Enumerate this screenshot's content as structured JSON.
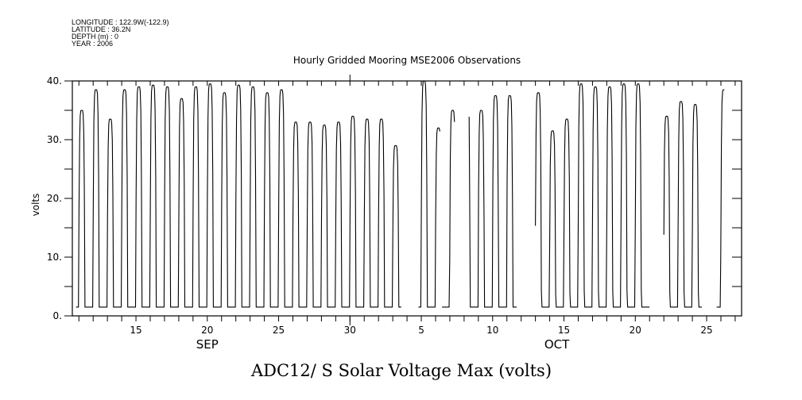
{
  "header": {
    "longitude": "LONGITUDE : 122.9W(-122.9)",
    "latitude": "LATITUDE : 36.2N",
    "depth": "DEPTH (m) : 0",
    "year": "YEAR : 2006"
  },
  "chart_data": {
    "type": "line",
    "title": "Hourly Gridded Mooring MSE2006 Observations",
    "xlabel": "ADC12/ S Solar Voltage Max (volts)",
    "ylabel": "volts",
    "x_unit": "day of Sep 2006 (Oct N = 30 + N)",
    "xlim": [
      10.54,
      57.45
    ],
    "ylim": [
      0,
      40
    ],
    "yticks": [
      0,
      5,
      10,
      15,
      20,
      25,
      30,
      35,
      40
    ],
    "ytick_labels": [
      {
        "value": 0,
        "label": "0."
      },
      {
        "value": 10,
        "label": "10."
      },
      {
        "value": 20,
        "label": "20."
      },
      {
        "value": 30,
        "label": "30."
      },
      {
        "value": 40,
        "label": "40."
      }
    ],
    "xtick_labels": [
      {
        "value": 15,
        "label": "15"
      },
      {
        "value": 20,
        "label": "20"
      },
      {
        "value": 25,
        "label": "25"
      },
      {
        "value": 30,
        "label": "30"
      },
      {
        "value": 35,
        "label": "5"
      },
      {
        "value": 40,
        "label": "10"
      },
      {
        "value": 45,
        "label": "15"
      },
      {
        "value": 50,
        "label": "20"
      },
      {
        "value": 55,
        "label": "25"
      }
    ],
    "month_labels": [
      {
        "value": 20,
        "label": "SEP"
      },
      {
        "value": 44.5,
        "label": "OCT"
      }
    ],
    "grid": false,
    "night_value": 1.5,
    "segments": [
      [
        10.8,
        33.6
      ],
      [
        34.8,
        36.3
      ],
      [
        36.45,
        37.35
      ],
      [
        38.35,
        41.7
      ],
      [
        43.0,
        51.0
      ],
      [
        52.0,
        54.7
      ],
      [
        55.7,
        56.25
      ]
    ],
    "daily_peaks": [
      {
        "day": 11,
        "value": 35
      },
      {
        "day": 12,
        "value": 38.5
      },
      {
        "day": 13,
        "value": 33.5
      },
      {
        "day": 14,
        "value": 38.5
      },
      {
        "day": 15,
        "value": 39
      },
      {
        "day": 16,
        "value": 39.3
      },
      {
        "day": 17,
        "value": 39
      },
      {
        "day": 18,
        "value": 37
      },
      {
        "day": 19,
        "value": 39
      },
      {
        "day": 20,
        "value": 39.5
      },
      {
        "day": 21,
        "value": 38
      },
      {
        "day": 22,
        "value": 39.3
      },
      {
        "day": 23,
        "value": 39
      },
      {
        "day": 24,
        "value": 38
      },
      {
        "day": 25,
        "value": 38.5
      },
      {
        "day": 26,
        "value": 33
      },
      {
        "day": 27,
        "value": 33
      },
      {
        "day": 28,
        "value": 32.5
      },
      {
        "day": 29,
        "value": 33
      },
      {
        "day": 30,
        "value": 34
      },
      {
        "day": 31,
        "value": 33.5
      },
      {
        "day": 32,
        "value": 33.5
      },
      {
        "day": 33,
        "value": 29
      },
      {
        "day": 35,
        "value": 40
      },
      {
        "day": 36,
        "value": 32
      },
      {
        "day": 37,
        "value": 35
      },
      {
        "day": 38,
        "value": 39.5
      },
      {
        "day": 39,
        "value": 35
      },
      {
        "day": 40,
        "value": 37.5
      },
      {
        "day": 41,
        "value": 37.5
      },
      {
        "day": 43,
        "value": 38
      },
      {
        "day": 44,
        "value": 31.5
      },
      {
        "day": 45,
        "value": 33.5
      },
      {
        "day": 46,
        "value": 39.5
      },
      {
        "day": 47,
        "value": 39
      },
      {
        "day": 48,
        "value": 39
      },
      {
        "day": 49,
        "value": 39.5
      },
      {
        "day": 50,
        "value": 39.5
      },
      {
        "day": 52,
        "value": 34
      },
      {
        "day": 53,
        "value": 36.5
      },
      {
        "day": 54,
        "value": 36
      },
      {
        "day": 56,
        "value": 38.5
      }
    ]
  }
}
